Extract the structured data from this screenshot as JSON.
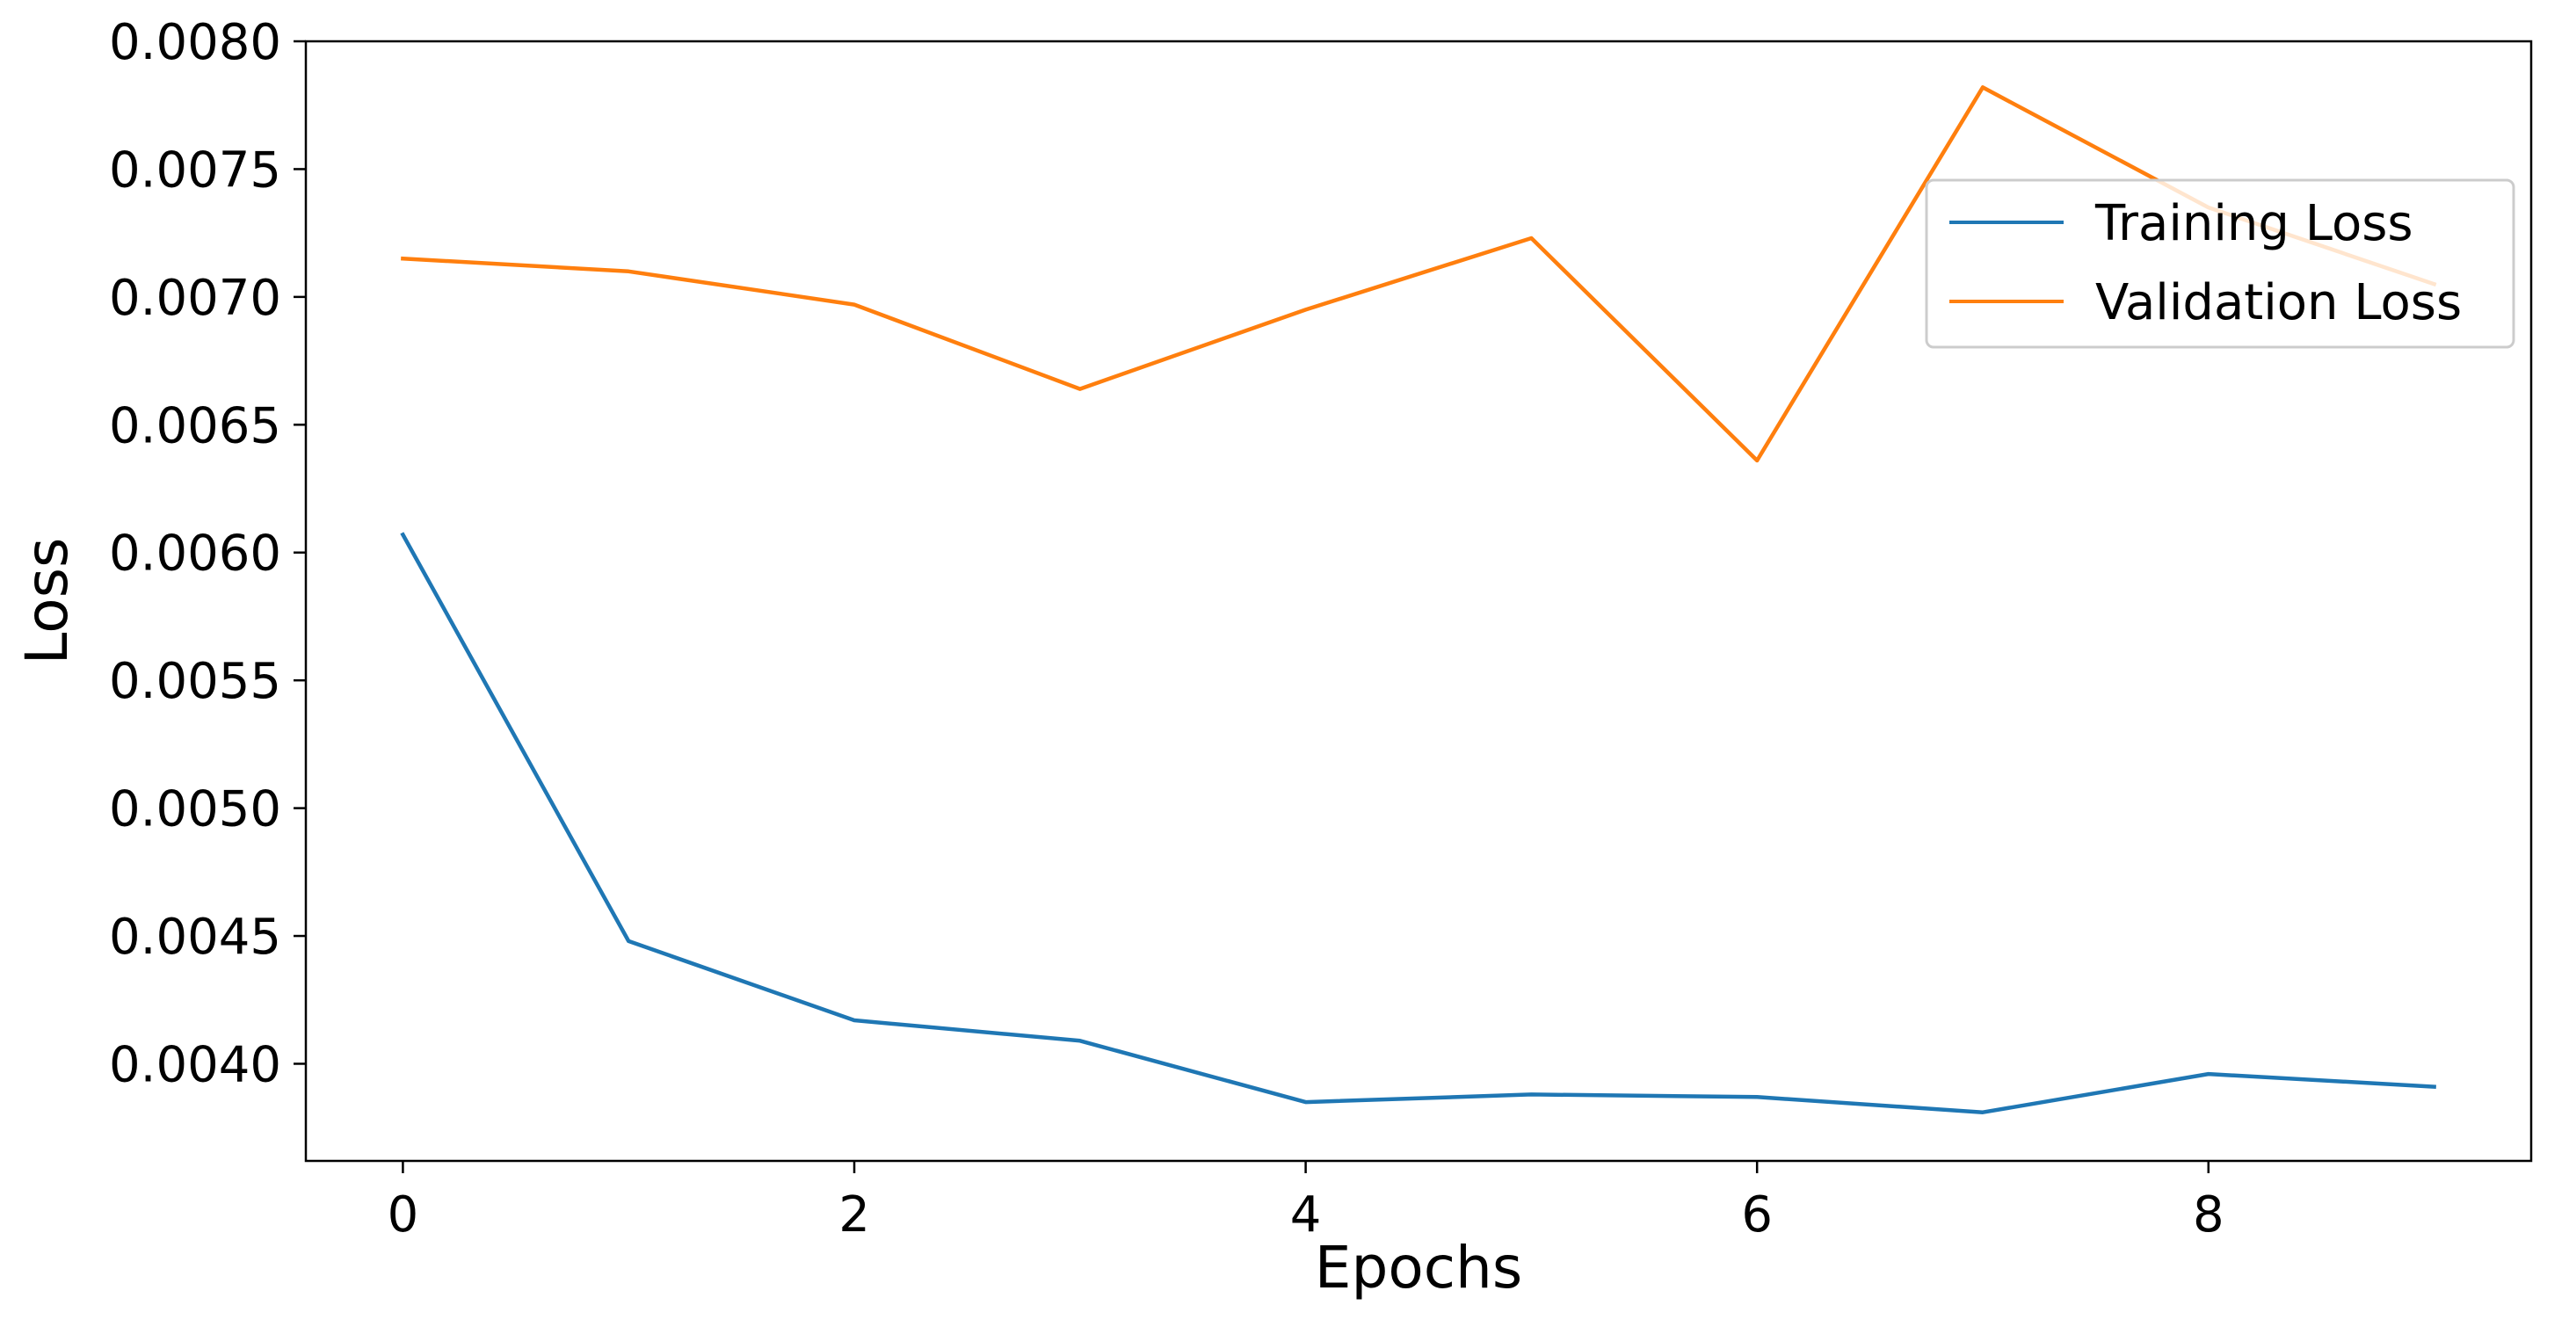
{
  "chart_data": {
    "type": "line",
    "title": "",
    "xlabel": "Epochs",
    "ylabel": "Loss",
    "x": [
      0,
      1,
      2,
      3,
      4,
      5,
      6,
      7,
      8,
      9
    ],
    "xlim": [
      -0.43,
      9.43
    ],
    "ylim": [
      0.00362,
      0.008
    ],
    "xticks": [
      0,
      2,
      4,
      6,
      8
    ],
    "xtick_labels": [
      "0",
      "2",
      "4",
      "6",
      "8"
    ],
    "yticks": [
      0.004,
      0.0045,
      0.005,
      0.0055,
      0.006,
      0.0065,
      0.007,
      0.0075,
      0.008
    ],
    "ytick_labels": [
      "0.0040",
      "0.0045",
      "0.0050",
      "0.0055",
      "0.0060",
      "0.0065",
      "0.0070",
      "0.0075",
      "0.0080"
    ],
    "grid": false,
    "legend": "upper right",
    "series": [
      {
        "name": "Training Loss",
        "color": "#1f77b4",
        "values": [
          0.00607,
          0.00448,
          0.00417,
          0.00409,
          0.00385,
          0.00388,
          0.00387,
          0.00381,
          0.00396,
          0.00391
        ]
      },
      {
        "name": "Validation Loss",
        "color": "#ff7f0e",
        "values": [
          0.00715,
          0.0071,
          0.00697,
          0.00664,
          0.00695,
          0.00723,
          0.00636,
          0.00782,
          0.00735,
          0.00705
        ]
      }
    ]
  }
}
